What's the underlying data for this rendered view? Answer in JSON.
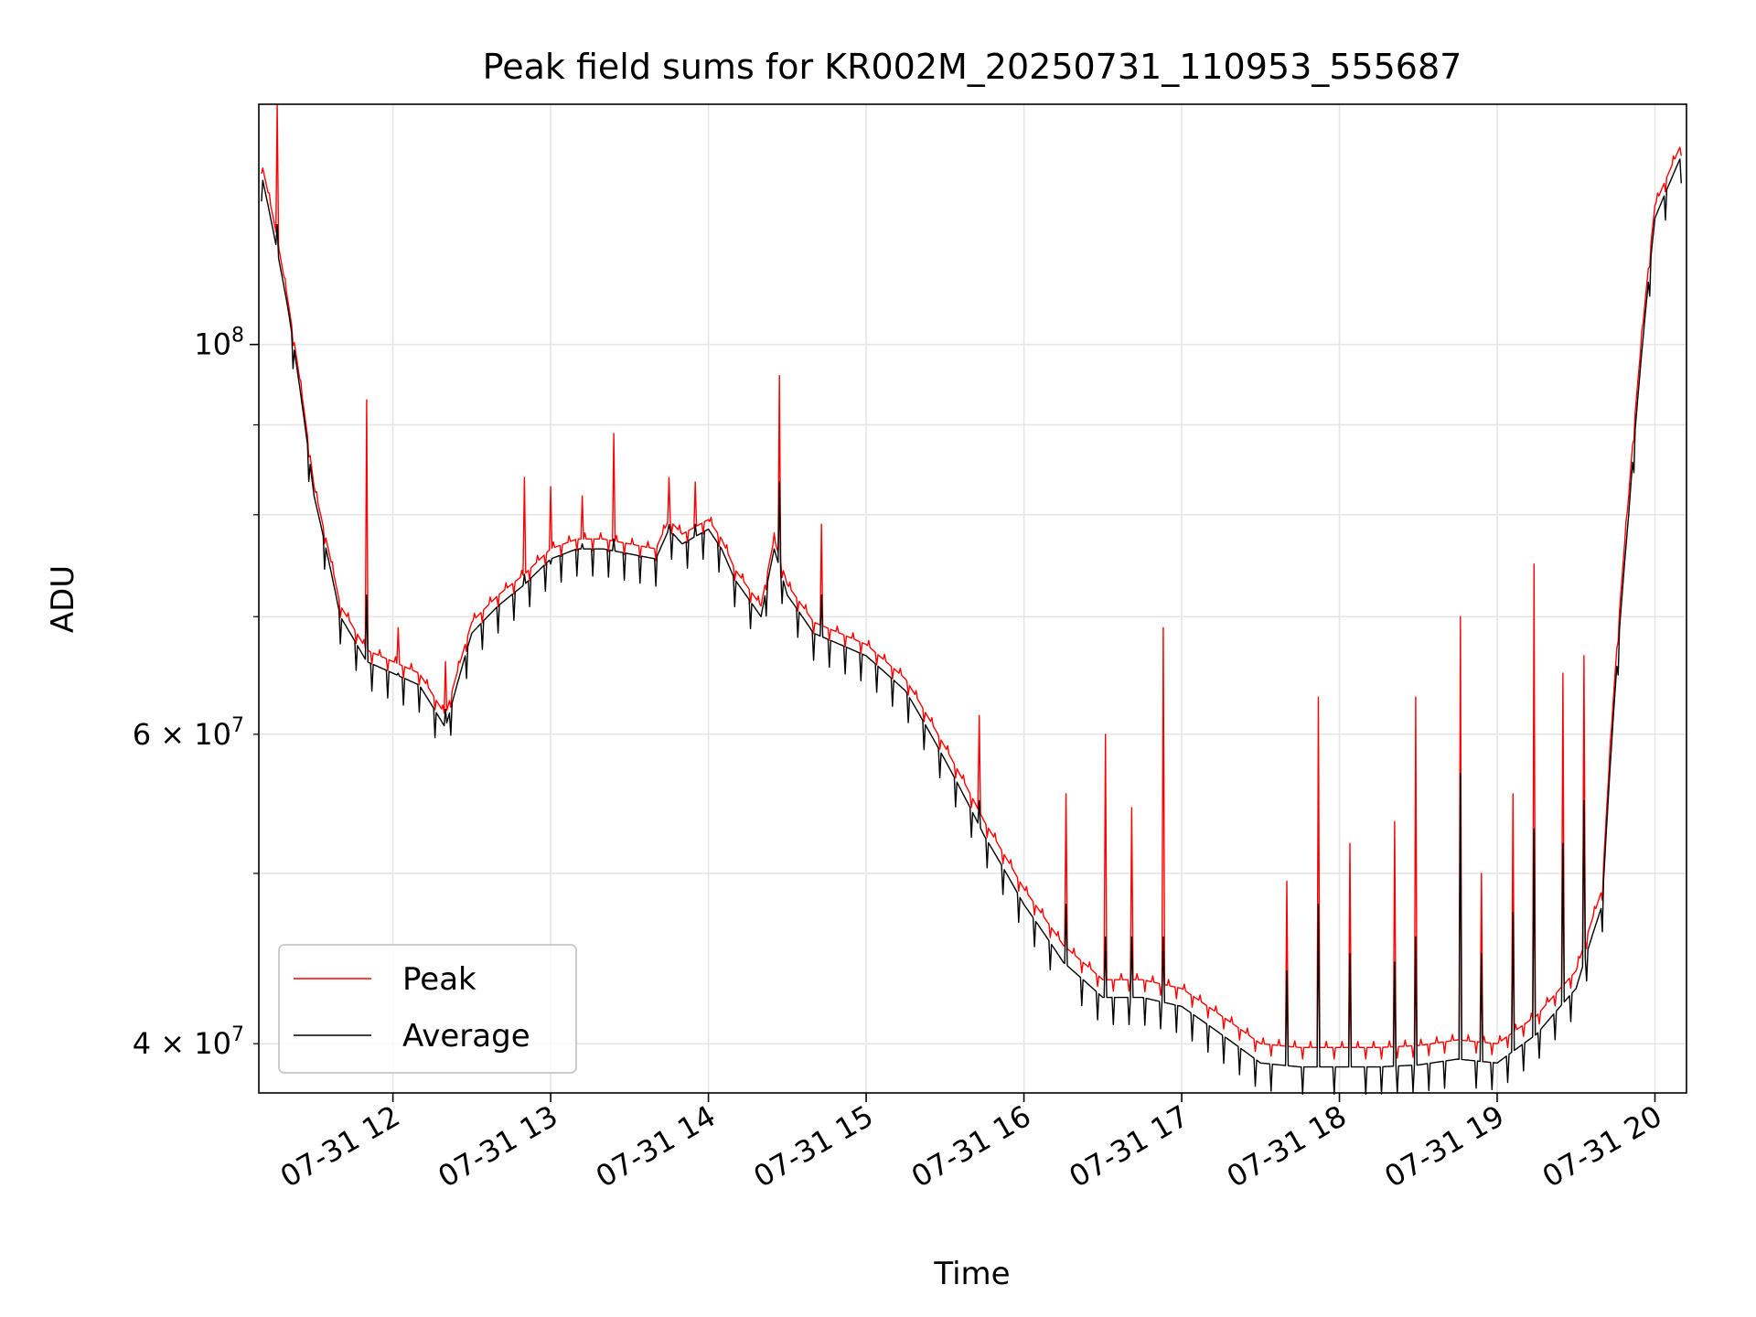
{
  "chart_data": {
    "type": "line",
    "title": "Peak field sums for KR002M_20250731_110953_555687",
    "xlabel": "Time",
    "ylabel": "ADU",
    "yscale": "log",
    "grid": true,
    "legend_position": "lower-left",
    "xlim": [
      "2025-07-31 11:09",
      "2025-07-31 20:12"
    ],
    "ylim": [
      37500000,
      137000000
    ],
    "x_ticks": [
      "07-31 12",
      "07-31 13",
      "07-31 14",
      "07-31 15",
      "07-31 16",
      "07-31 17",
      "07-31 18",
      "07-31 19",
      "07-31 20"
    ],
    "y_major_ticks": [
      {
        "value": 100000000,
        "label": "10^8"
      }
    ],
    "y_minor_ticks": [
      {
        "value": 40000000,
        "label": "4×10^7"
      },
      {
        "value": 50000000,
        "label": ""
      },
      {
        "value": 60000000,
        "label": "6×10^7"
      },
      {
        "value": 70000000,
        "label": ""
      },
      {
        "value": 80000000,
        "label": ""
      },
      {
        "value": 90000000,
        "label": ""
      }
    ],
    "series": [
      {
        "name": "Peak",
        "color": "#ff0000"
      },
      {
        "name": "Average",
        "color": "#000000"
      }
    ],
    "baseline": {
      "x": [
        "11:10",
        "11:15",
        "11:20",
        "11:30",
        "11:40",
        "11:50",
        "12:00",
        "12:10",
        "12:20",
        "12:25",
        "12:30",
        "12:40",
        "12:50",
        "13:00",
        "13:10",
        "13:20",
        "13:30",
        "13:40",
        "13:45",
        "13:50",
        "14:00",
        "14:05",
        "14:10",
        "14:20",
        "14:25",
        "14:30",
        "14:40",
        "15:00",
        "15:15",
        "15:30",
        "15:45",
        "16:00",
        "16:15",
        "16:30",
        "16:45",
        "17:00",
        "17:15",
        "17:30",
        "17:45",
        "18:00",
        "18:15",
        "18:30",
        "18:45",
        "19:00",
        "19:15",
        "19:30",
        "19:40",
        "19:50",
        "20:00",
        "20:10"
      ],
      "average": [
        125000000,
        115000000,
        105000000,
        82000000,
        70000000,
        66000000,
        65000000,
        64000000,
        60500000,
        64500000,
        68500000,
        71000000,
        73000000,
        75500000,
        76500000,
        76500000,
        76000000,
        75500000,
        78500000,
        77000000,
        78500000,
        76500000,
        73500000,
        70000000,
        76500000,
        72000000,
        68500000,
        66500000,
        63500000,
        58000000,
        52500000,
        48000000,
        44500000,
        42500000,
        42500000,
        42000000,
        40500000,
        39000000,
        38800000,
        38800000,
        38800000,
        38900000,
        39200000,
        39000000,
        40500000,
        43000000,
        48000000,
        80000000,
        118000000,
        128000000
      ],
      "peak": [
        127000000,
        117000000,
        106000000,
        83000000,
        71000000,
        67000000,
        66000000,
        65000000,
        61500000,
        65500000,
        69500000,
        72000000,
        74000000,
        76500000,
        77500000,
        77500000,
        77000000,
        76500000,
        79500000,
        78000000,
        79500000,
        77500000,
        74500000,
        71000000,
        77500000,
        73000000,
        69500000,
        67500000,
        64500000,
        59000000,
        53500000,
        49000000,
        45500000,
        43500000,
        43500000,
        43000000,
        41500000,
        40000000,
        39800000,
        39800000,
        39800000,
        39900000,
        40200000,
        40000000,
        41500000,
        44000000,
        49000000,
        82000000,
        120000000,
        130000000
      ]
    },
    "spikes": [
      {
        "x": "11:16",
        "peak": 137000000,
        "average": 117000000
      },
      {
        "x": "11:50",
        "peak": 93000000,
        "average": 72000000
      },
      {
        "x": "12:02",
        "peak": 69000000,
        "average": 65000000
      },
      {
        "x": "12:20",
        "peak": 66000000,
        "average": 62000000
      },
      {
        "x": "12:50",
        "peak": 84000000,
        "average": 74000000
      },
      {
        "x": "13:00",
        "peak": 83000000,
        "average": 75000000
      },
      {
        "x": "13:12",
        "peak": 82000000,
        "average": 77000000
      },
      {
        "x": "13:24",
        "peak": 89000000,
        "average": 77500000
      },
      {
        "x": "13:45",
        "peak": 84000000,
        "average": 79000000
      },
      {
        "x": "13:55",
        "peak": 83500000,
        "average": 79000000
      },
      {
        "x": "14:27",
        "peak": 96000000,
        "average": 83500000
      },
      {
        "x": "14:43",
        "peak": 79000000,
        "average": 72000000
      },
      {
        "x": "15:43",
        "peak": 61500000,
        "average": 55000000
      },
      {
        "x": "16:16",
        "peak": 55500000,
        "average": 48000000
      },
      {
        "x": "16:31",
        "peak": 60000000,
        "average": 46000000
      },
      {
        "x": "16:41",
        "peak": 54500000,
        "average": 46000000
      },
      {
        "x": "16:53",
        "peak": 69000000,
        "average": 46000000
      },
      {
        "x": "17:40",
        "peak": 49500000,
        "average": 44000000
      },
      {
        "x": "17:52",
        "peak": 63000000,
        "average": 48000000
      },
      {
        "x": "18:04",
        "peak": 52000000,
        "average": 45000000
      },
      {
        "x": "18:21",
        "peak": 53500000,
        "average": 44500000
      },
      {
        "x": "18:29",
        "peak": 63000000,
        "average": 46000000
      },
      {
        "x": "18:46",
        "peak": 70000000,
        "average": 57000000
      },
      {
        "x": "18:54",
        "peak": 50000000,
        "average": 45000000
      },
      {
        "x": "19:06",
        "peak": 55500000,
        "average": 47500000
      },
      {
        "x": "19:14",
        "peak": 75000000,
        "average": 53000000
      },
      {
        "x": "19:25",
        "peak": 65000000,
        "average": 52000000
      },
      {
        "x": "19:33",
        "peak": 66500000,
        "average": 55000000
      }
    ],
    "legend": {
      "entries": [
        "Peak",
        "Average"
      ]
    }
  }
}
